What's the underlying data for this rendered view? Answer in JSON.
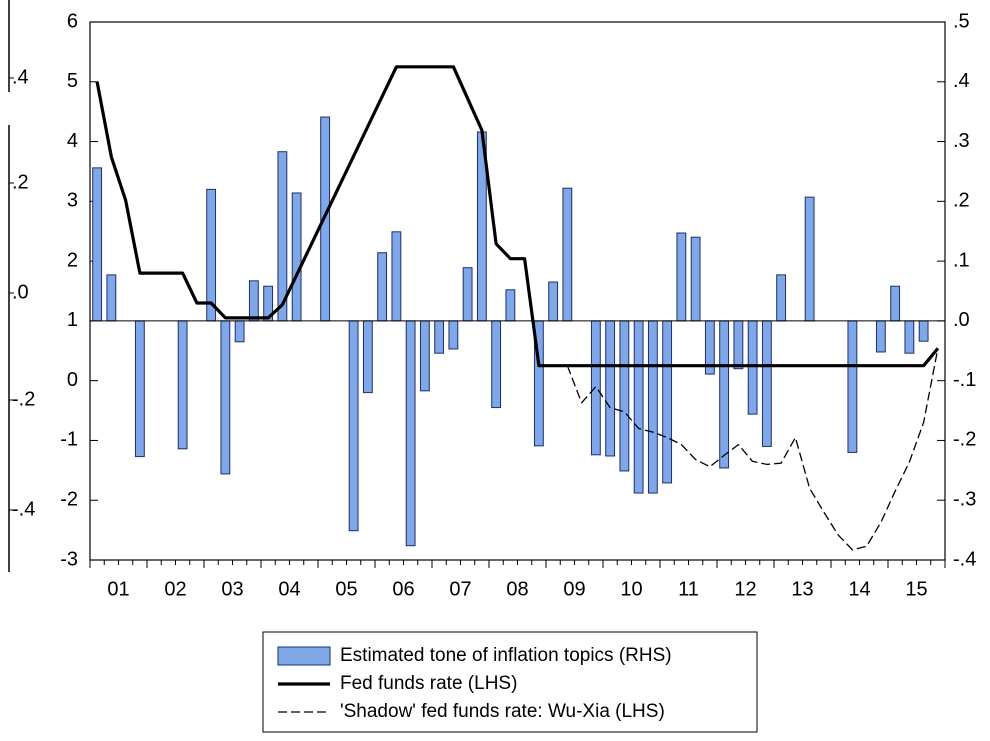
{
  "chart_data": {
    "type": "bar_line",
    "xlim": [
      2001,
      2016
    ],
    "xticks": [
      {
        "value": 2001.5,
        "label": "01"
      },
      {
        "value": 2002.5,
        "label": "02"
      },
      {
        "value": 2003.5,
        "label": "03"
      },
      {
        "value": 2004.5,
        "label": "04"
      },
      {
        "value": 2005.5,
        "label": "05"
      },
      {
        "value": 2006.5,
        "label": "06"
      },
      {
        "value": 2007.5,
        "label": "07"
      },
      {
        "value": 2008.5,
        "label": "08"
      },
      {
        "value": 2009.5,
        "label": "09"
      },
      {
        "value": 2010.5,
        "label": "10"
      },
      {
        "value": 2011.5,
        "label": "11"
      },
      {
        "value": 2012.5,
        "label": "12"
      },
      {
        "value": 2013.5,
        "label": "13"
      },
      {
        "value": 2014.5,
        "label": "14"
      },
      {
        "value": 2015.5,
        "label": "15"
      }
    ],
    "ylim": [
      -3,
      6
    ],
    "yticks": [
      -3,
      -2,
      -1,
      0,
      1,
      2,
      3,
      4,
      5,
      6
    ],
    "y2lim": [
      -0.4,
      0.5
    ],
    "y2ticks": [
      {
        "value": -0.4,
        "label": "-.4"
      },
      {
        "value": -0.3,
        "label": "-.3"
      },
      {
        "value": -0.2,
        "label": "-.2"
      },
      {
        "value": -0.1,
        "label": "-.1"
      },
      {
        "value": 0,
        "label": ".0"
      },
      {
        "value": 0.1,
        "label": ".1"
      },
      {
        "value": 0.2,
        "label": ".2"
      },
      {
        "value": 0.3,
        "label": ".3"
      },
      {
        "value": 0.4,
        "label": ".4"
      },
      {
        "value": 0.5,
        "label": ".5"
      }
    ],
    "series": [
      {
        "name": "Estimated tone of inflation topics (RHS)",
        "type": "bar",
        "axis": "y2",
        "color": "#80a8e8",
        "x": [
          2001.125,
          2001.375,
          2001.875,
          2002.625,
          2003.125,
          2003.375,
          2003.625,
          2003.875,
          2004.125,
          2004.375,
          2004.625,
          2005.125,
          2005.625,
          2005.875,
          2006.125,
          2006.375,
          2006.625,
          2006.875,
          2007.125,
          2007.375,
          2007.625,
          2007.875,
          2008.125,
          2008.375,
          2008.875,
          2009.125,
          2009.375,
          2009.875,
          2010.125,
          2010.375,
          2010.625,
          2010.875,
          2011.125,
          2011.375,
          2011.625,
          2011.875,
          2012.125,
          2012.375,
          2012.625,
          2012.875,
          2013.125,
          2013.625,
          2014.375,
          2014.875,
          2015.125,
          2015.375,
          2015.625
        ],
        "values": [
          0.256,
          0.077,
          -0.227,
          -0.214,
          0.22,
          -0.256,
          -0.035,
          0.067,
          0.058,
          0.283,
          0.214,
          0.341,
          -0.351,
          -0.12,
          0.114,
          0.149,
          -0.376,
          -0.117,
          -0.054,
          -0.047,
          0.089,
          0.316,
          -0.145,
          0.052,
          -0.209,
          0.065,
          0.222,
          -0.224,
          -0.226,
          -0.251,
          -0.288,
          -0.288,
          -0.271,
          0.147,
          0.14,
          -0.089,
          -0.246,
          -0.08,
          -0.156,
          -0.21,
          0.077,
          0.207,
          -0.22,
          -0.052,
          0.058,
          -0.054,
          -0.034
        ]
      },
      {
        "name": "Fed funds rate (LHS)",
        "type": "line",
        "color": "#000000",
        "dashed": false,
        "x": [
          2001.125,
          2001.375,
          2001.625,
          2001.875,
          2002.625,
          2002.875,
          2003.125,
          2003.375,
          2004.125,
          2004.375,
          2006.375,
          2007.375,
          2007.875,
          2008.125,
          2008.375,
          2008.625,
          2008.875,
          2015.625,
          2015.875
        ],
        "values": [
          5.0,
          3.74,
          3.02,
          1.8,
          1.8,
          1.3,
          1.3,
          1.05,
          1.05,
          1.27,
          5.25,
          5.25,
          4.19,
          2.29,
          2.04,
          2.04,
          0.25,
          0.25,
          0.54
        ]
      },
      {
        "name": "'Shadow' fed funds rate: Wu-Xia (LHS)",
        "type": "line",
        "color": "#000000",
        "dashed": true,
        "x": [
          2009.375,
          2009.625,
          2009.875,
          2010.125,
          2010.375,
          2010.625,
          2010.875,
          2011.125,
          2011.375,
          2011.625,
          2011.875,
          2012.125,
          2012.375,
          2012.625,
          2012.875,
          2013.125,
          2013.375,
          2013.625,
          2013.875,
          2014.125,
          2014.375,
          2014.625,
          2014.875,
          2015.125,
          2015.375,
          2015.625,
          2015.875
        ],
        "values": [
          0.25,
          -0.37,
          -0.1,
          -0.45,
          -0.52,
          -0.8,
          -0.86,
          -0.95,
          -1.07,
          -1.32,
          -1.44,
          -1.25,
          -1.07,
          -1.35,
          -1.4,
          -1.38,
          -0.95,
          -1.8,
          -2.2,
          -2.58,
          -2.83,
          -2.77,
          -2.37,
          -1.85,
          -1.36,
          -0.7,
          0.54
        ]
      }
    ],
    "stray_axis_labels": [
      ".4",
      ".2",
      ".0",
      "-.2",
      "-.4"
    ]
  }
}
